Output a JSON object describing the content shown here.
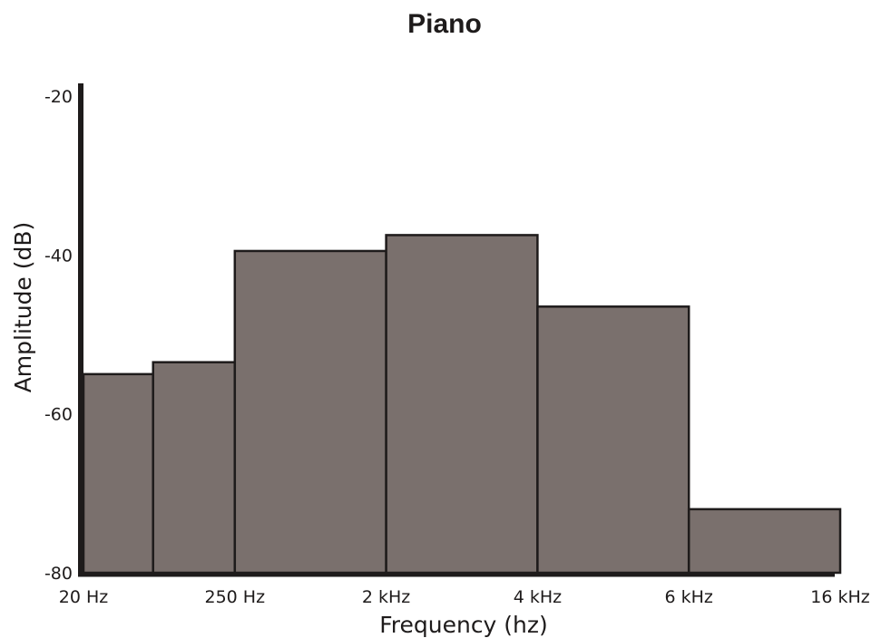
{
  "chart_data": {
    "type": "bar",
    "title": "Piano",
    "xlabel": "Frequency (hz)",
    "ylabel": "Amplitude (dB)",
    "x_tick_labels": [
      "20 Hz",
      "250 Hz",
      "2 kHz",
      "4 kHz",
      "6 kHz",
      "16 kHz"
    ],
    "y_tick_labels": [
      "-20",
      "-40",
      "-60",
      "-80"
    ],
    "ylim": [
      -80,
      -20
    ],
    "bars": [
      {
        "x_start": 0,
        "x_end": 0.46,
        "value": -55
      },
      {
        "x_start": 0.46,
        "x_end": 1,
        "value": -53.5
      },
      {
        "x_start": 1,
        "x_end": 2,
        "value": -39.5
      },
      {
        "x_start": 2,
        "x_end": 3,
        "value": -37.5
      },
      {
        "x_start": 3,
        "x_end": 4,
        "value": -46.5
      },
      {
        "x_start": 4,
        "x_end": 5,
        "value": -72
      }
    ],
    "bar_color": "#7a706d",
    "edge_color": "#1e1b1b",
    "axis_color": "#1e1b1b",
    "grid": false
  }
}
